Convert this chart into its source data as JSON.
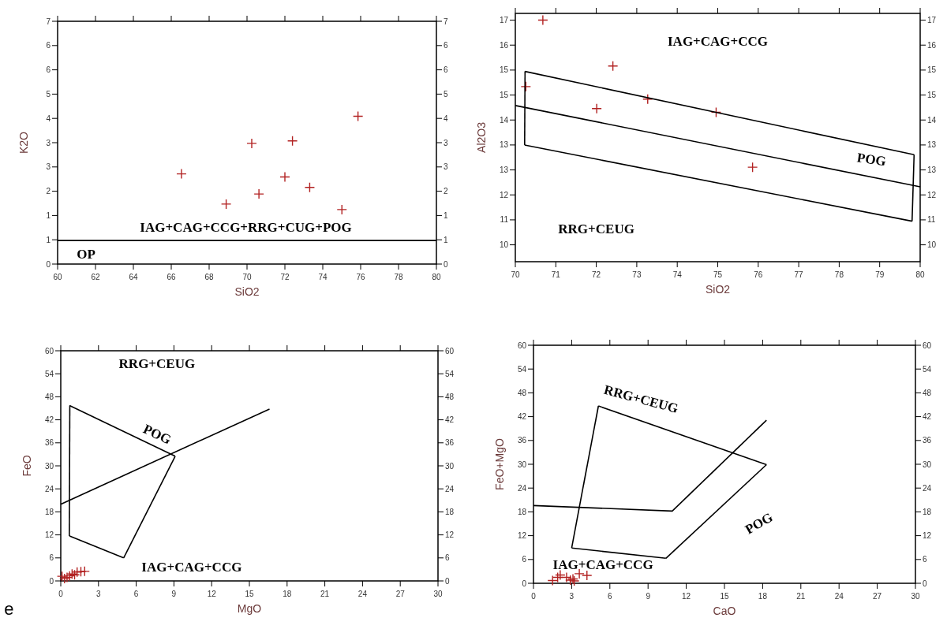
{
  "chart_data": [
    {
      "type": "scatter",
      "xlabel": "SiO2",
      "ylabel": "K2O",
      "xlim": [
        60,
        80
      ],
      "xticks": [
        60,
        62,
        64,
        66,
        68,
        70,
        72,
        74,
        76,
        78,
        80
      ],
      "ylim": [
        0,
        7
      ],
      "yticks": [
        0,
        {
          "value": 0.7,
          "label": "1"
        },
        {
          "value": 1.4,
          "label": "1"
        },
        {
          "value": 2.1,
          "label": "2"
        },
        {
          "value": 2.8,
          "label": "3"
        },
        {
          "value": 3.5,
          "label": "3"
        },
        {
          "value": 4.2,
          "label": "4"
        },
        {
          "value": 4.9,
          "label": "5"
        },
        {
          "value": 5.6,
          "label": "6"
        },
        {
          "value": 6.3,
          "label": "6"
        },
        7
      ],
      "y2lim": [
        0,
        7
      ],
      "y2ticks": [
        0,
        {
          "value": 0.7,
          "label": "1"
        },
        {
          "value": 1.4,
          "label": "1"
        },
        {
          "value": 2.1,
          "label": "2"
        },
        {
          "value": 2.8,
          "label": "3"
        },
        {
          "value": 3.5,
          "label": "3"
        },
        {
          "value": 4.2,
          "label": "4"
        },
        {
          "value": 4.9,
          "label": "5"
        },
        {
          "value": 5.6,
          "label": "6"
        },
        {
          "value": 6.3,
          "label": "6"
        },
        7
      ],
      "series": [
        {
          "color": "#b22222",
          "marker": "cross",
          "x": [
            66.54,
            68.9,
            70.25,
            70.63,
            72.0,
            72.4,
            73.31,
            75.01,
            75.86
          ],
          "values": [
            2.6,
            1.73,
            3.48,
            2.02,
            2.51,
            3.55,
            2.21,
            1.57,
            4.26
          ]
        },
        {
          "type": "line",
          "color": "#000000",
          "marker": "none",
          "x": [
            60,
            80
          ],
          "values": [
            0.68,
            0.68
          ]
        }
      ],
      "annotations": [
        "IAG+CAG+CCG+RRG+CUG+POG",
        "OP"
      ]
    },
    {
      "type": "scatter",
      "xlabel": "SiO2",
      "ylabel": "Al2O3",
      "xlim": [
        70,
        80
      ],
      "xticks": [
        70,
        71,
        72,
        73,
        74,
        75,
        76,
        77,
        78,
        79,
        80
      ],
      "ylim": [
        9.8,
        17.16
      ],
      "yticks": [
        {
          "value": 10.3,
          "label": "10"
        },
        {
          "value": 11.04,
          "label": "11"
        },
        {
          "value": 11.78,
          "label": "12"
        },
        {
          "value": 12.52,
          "label": "13"
        },
        {
          "value": 13.26,
          "label": "13"
        },
        {
          "value": 14.0,
          "label": "14"
        },
        {
          "value": 14.74,
          "label": "15"
        },
        {
          "value": 15.48,
          "label": "15"
        },
        {
          "value": 16.22,
          "label": "16"
        },
        {
          "value": 16.96,
          "label": "17"
        }
      ],
      "y2lim": [
        9.8,
        17.16
      ],
      "y2ticks": [
        {
          "value": 10.3,
          "label": "10"
        },
        {
          "value": 11.04,
          "label": "11"
        },
        {
          "value": 11.78,
          "label": "12"
        },
        {
          "value": 12.52,
          "label": "13"
        },
        {
          "value": 13.26,
          "label": "13"
        },
        {
          "value": 14.0,
          "label": "14"
        },
        {
          "value": 14.74,
          "label": "15"
        },
        {
          "value": 15.48,
          "label": "15"
        },
        {
          "value": 16.22,
          "label": "16"
        },
        {
          "value": 16.96,
          "label": "17"
        }
      ],
      "series": [
        {
          "color": "#b22222",
          "marker": "cross",
          "x": [
            70.68,
            70.26,
            72.41,
            72.01,
            73.27,
            74.96,
            75.86
          ],
          "values": [
            16.96,
            14.99,
            15.6,
            14.34,
            14.62,
            14.23,
            12.6
          ]
        },
        {
          "type": "line",
          "color": "#000000",
          "marker": "none",
          "x": [
            70.24,
            79.85
          ],
          "values": [
            15.44,
            12.97
          ]
        },
        {
          "type": "line",
          "color": "#000000",
          "marker": "none",
          "x": [
            79.8,
            79.85
          ],
          "values": [
            11.0,
            12.97
          ]
        },
        {
          "type": "line",
          "color": "#000000",
          "marker": "none",
          "x": [
            70.23,
            79.8
          ],
          "values": [
            13.26,
            11.0
          ]
        },
        {
          "type": "line",
          "color": "#000000",
          "marker": "none",
          "x": [
            70.23,
            70.24
          ],
          "values": [
            13.26,
            15.44
          ]
        },
        {
          "type": "line",
          "color": "#000000",
          "marker": "none",
          "x": [
            70,
            80
          ],
          "values": [
            14.43,
            12.02
          ]
        }
      ],
      "annotations": [
        "IAG+CAG+CCG",
        "POG",
        "RRG+CEUG"
      ]
    },
    {
      "type": "scatter",
      "xlabel": "MgO",
      "ylabel": "FeO",
      "xlim": [
        0,
        30
      ],
      "xticks": [
        0,
        3,
        6,
        9,
        12,
        15,
        18,
        21,
        24,
        27,
        30
      ],
      "ylim": [
        0,
        60
      ],
      "yticks": [
        0,
        6,
        12,
        18,
        24,
        30,
        36,
        42,
        48,
        54,
        60
      ],
      "y2lim": [
        0,
        60
      ],
      "y2ticks": [
        0,
        6,
        12,
        18,
        24,
        30,
        36,
        42,
        48,
        54,
        60
      ],
      "series": [
        {
          "color": "#b22222",
          "marker": "cross",
          "x": [
            0.1,
            0.3,
            0.5,
            0.7,
            0.9,
            1.1,
            1.3,
            1.6,
            1.9
          ],
          "values": [
            1.2,
            0.6,
            0.9,
            1.3,
            1.8,
            1.6,
            2.3,
            2.4,
            2.5
          ]
        },
        {
          "type": "line",
          "color": "#000000",
          "marker": "none",
          "x": [
            0.7,
            9.1
          ],
          "values": [
            45.7,
            32.5
          ]
        },
        {
          "type": "line",
          "color": "#000000",
          "marker": "none",
          "x": [
            5.0,
            9.1
          ],
          "values": [
            6.0,
            32.5
          ]
        },
        {
          "type": "line",
          "color": "#000000",
          "marker": "none",
          "x": [
            0.7,
            5.0
          ],
          "values": [
            11.7,
            6.0
          ]
        },
        {
          "type": "line",
          "color": "#000000",
          "marker": "none",
          "x": [
            0.68,
            0.72
          ],
          "values": [
            11.7,
            45.7
          ]
        },
        {
          "type": "line",
          "color": "#000000",
          "marker": "none",
          "x": [
            0,
            16.6
          ],
          "values": [
            20.0,
            44.8
          ]
        }
      ],
      "annotations": [
        "RRG+CEUG",
        "POG",
        "IAG+CAG+CCG",
        "e"
      ]
    },
    {
      "type": "scatter",
      "xlabel": "CaO",
      "ylabel": "FeO+MgO",
      "xlim": [
        0,
        30
      ],
      "xticks": [
        0,
        3,
        6,
        9,
        12,
        15,
        18,
        21,
        24,
        27,
        30
      ],
      "ylim": [
        0,
        60
      ],
      "yticks": [
        0,
        6,
        12,
        18,
        24,
        30,
        36,
        42,
        48,
        54,
        60
      ],
      "y2lim": [
        0,
        60
      ],
      "y2ticks": [
        0,
        6,
        12,
        18,
        24,
        30,
        36,
        42,
        48,
        54,
        60
      ],
      "series": [
        {
          "color": "#b22222",
          "marker": "cross",
          "x": [
            1.5,
            1.9,
            2.1,
            2.6,
            2.9,
            3.1,
            3.6,
            4.2,
            3.2
          ],
          "values": [
            0.7,
            1.5,
            2.1,
            1.5,
            0.8,
            1.1,
            2.4,
            2.0,
            0.6
          ]
        },
        {
          "type": "line",
          "color": "#000000",
          "marker": "none",
          "x": [
            5.1,
            18.3
          ],
          "values": [
            44.7,
            29.9
          ]
        },
        {
          "type": "line",
          "color": "#000000",
          "marker": "none",
          "x": [
            10.4,
            18.3
          ],
          "values": [
            6.3,
            29.9
          ]
        },
        {
          "type": "line",
          "color": "#000000",
          "marker": "none",
          "x": [
            3.0,
            10.4
          ],
          "values": [
            8.9,
            6.3
          ]
        },
        {
          "type": "line",
          "color": "#000000",
          "marker": "none",
          "x": [
            3.0,
            5.1
          ],
          "values": [
            8.9,
            44.7
          ]
        },
        {
          "type": "line",
          "color": "#000000",
          "marker": "none",
          "x": [
            0,
            10.9,
            18.3
          ],
          "values": [
            19.6,
            18.2,
            41.1
          ]
        }
      ],
      "annotations": [
        "RRG+CEUG",
        "POG",
        "IAG+CAG+CCG"
      ]
    }
  ]
}
